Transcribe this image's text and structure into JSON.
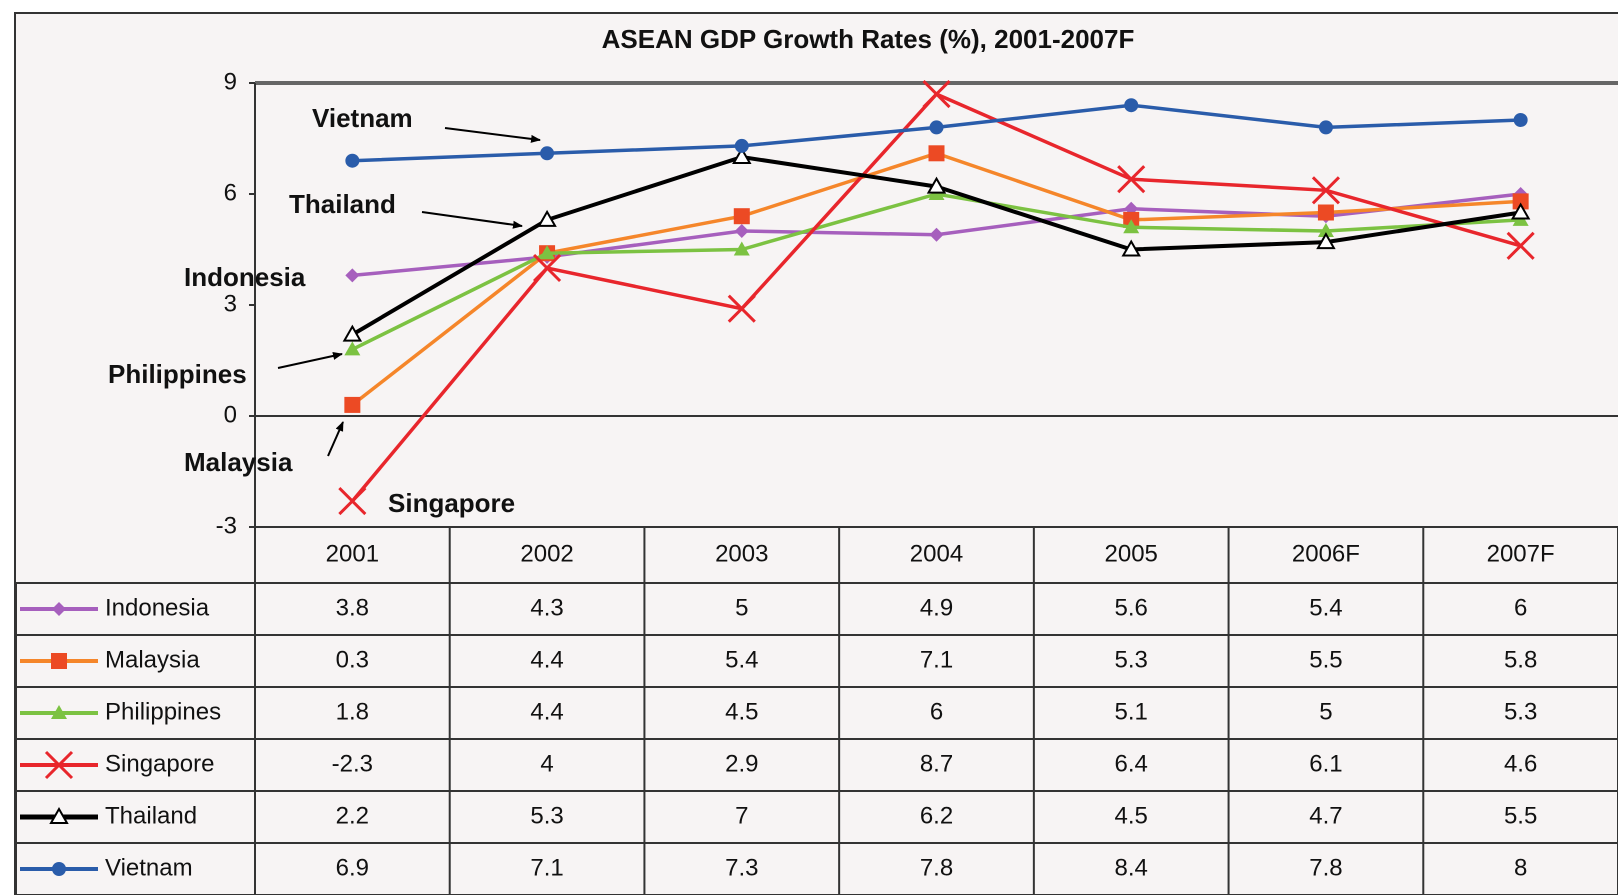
{
  "chart_data": {
    "type": "line",
    "title": "ASEAN GDP Growth Rates (%), 2001-2007F",
    "categories": [
      "2001",
      "2002",
      "2003",
      "2004",
      "2005",
      "2006F",
      "2007F"
    ],
    "ylim": [
      -3,
      9
    ],
    "yticks": [
      -3,
      0,
      3,
      6,
      9
    ],
    "grid": false,
    "series": [
      {
        "name": "Indonesia",
        "color": "#a65fbd",
        "marker": "diamond",
        "values": [
          3.8,
          4.3,
          5,
          4.9,
          5.6,
          5.4,
          6
        ]
      },
      {
        "name": "Malaysia",
        "color": "#f5862a",
        "marker": "square",
        "values": [
          0.3,
          4.4,
          5.4,
          7.1,
          5.3,
          5.5,
          5.8
        ]
      },
      {
        "name": "Philippines",
        "color": "#7cc242",
        "marker": "triangle",
        "values": [
          1.8,
          4.4,
          4.5,
          6,
          5.1,
          5,
          5.3
        ]
      },
      {
        "name": "Singapore",
        "color": "#e8262c",
        "marker": "x",
        "values": [
          -2.3,
          4,
          2.9,
          8.7,
          6.4,
          6.1,
          4.6
        ]
      },
      {
        "name": "Thailand",
        "color": "#000000",
        "marker": "open-triangle",
        "values": [
          2.2,
          5.3,
          7,
          6.2,
          4.5,
          4.7,
          5.5
        ]
      },
      {
        "name": "Vietnam",
        "color": "#2a5caa",
        "marker": "circle",
        "values": [
          6.9,
          7.1,
          7.3,
          7.8,
          8.4,
          7.8,
          8
        ]
      }
    ],
    "annotations": [
      "Vietnam",
      "Thailand",
      "Indonesia",
      "Philippines",
      "Malaysia",
      "Singapore"
    ]
  }
}
